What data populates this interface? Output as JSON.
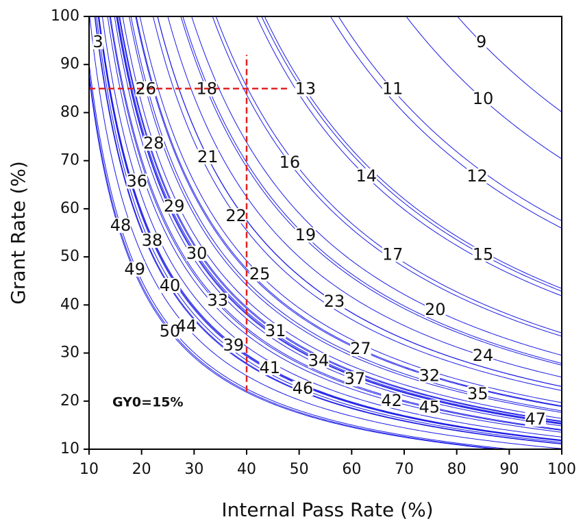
{
  "chart_data": {
    "type": "contour",
    "xlabel": "Internal Pass Rate (%)",
    "ylabel": "Grant Rate (%)",
    "annotation": "GY0=15%",
    "xlim": [
      10,
      100
    ],
    "ylim": [
      10,
      100
    ],
    "xticks": [
      10,
      20,
      30,
      40,
      50,
      60,
      70,
      80,
      90,
      100
    ],
    "yticks": [
      10,
      20,
      30,
      40,
      50,
      60,
      70,
      80,
      90,
      100
    ],
    "color": "#1a1ae6",
    "contours": [
      {
        "label": 3,
        "x": 11.7,
        "y": 94.6
      },
      {
        "label": 9,
        "x": 84.7,
        "y": 94.6
      },
      {
        "label": 26,
        "x": 20.8,
        "y": 84.8
      },
      {
        "label": 18,
        "x": 32.4,
        "y": 84.8
      },
      {
        "label": 13,
        "x": 51.2,
        "y": 84.8
      },
      {
        "label": 11,
        "x": 67.8,
        "y": 84.8
      },
      {
        "label": 10,
        "x": 85.0,
        "y": 82.8
      },
      {
        "label": 28,
        "x": 22.3,
        "y": 73.5
      },
      {
        "label": 21,
        "x": 32.6,
        "y": 70.7
      },
      {
        "label": 16,
        "x": 48.2,
        "y": 69.5
      },
      {
        "label": 14,
        "x": 62.8,
        "y": 66.7
      },
      {
        "label": 12,
        "x": 83.9,
        "y": 66.7
      },
      {
        "label": 36,
        "x": 19.1,
        "y": 65.6
      },
      {
        "label": 29,
        "x": 26.2,
        "y": 60.4
      },
      {
        "label": 22,
        "x": 38.0,
        "y": 58.4
      },
      {
        "label": 48,
        "x": 16.0,
        "y": 56.4
      },
      {
        "label": 19,
        "x": 51.2,
        "y": 54.4
      },
      {
        "label": 38,
        "x": 22.0,
        "y": 53.3
      },
      {
        "label": 30,
        "x": 30.5,
        "y": 50.6
      },
      {
        "label": 17,
        "x": 67.8,
        "y": 50.4
      },
      {
        "label": 15,
        "x": 85.0,
        "y": 50.4
      },
      {
        "label": 49,
        "x": 18.7,
        "y": 47.3
      },
      {
        "label": 25,
        "x": 42.5,
        "y": 46.3
      },
      {
        "label": 40,
        "x": 25.4,
        "y": 43.9
      },
      {
        "label": 33,
        "x": 34.5,
        "y": 40.8
      },
      {
        "label": 23,
        "x": 56.7,
        "y": 40.6
      },
      {
        "label": 20,
        "x": 75.9,
        "y": 38.9
      },
      {
        "label": 44,
        "x": 28.5,
        "y": 35.5
      },
      {
        "label": 50,
        "x": 25.4,
        "y": 34.4
      },
      {
        "label": 31,
        "x": 45.5,
        "y": 34.5
      },
      {
        "label": 39,
        "x": 37.5,
        "y": 31.5
      },
      {
        "label": 27,
        "x": 61.7,
        "y": 30.8
      },
      {
        "label": 24,
        "x": 85.0,
        "y": 29.4
      },
      {
        "label": 34,
        "x": 53.7,
        "y": 28.3
      },
      {
        "label": 41,
        "x": 44.4,
        "y": 26.8
      },
      {
        "label": 37,
        "x": 60.6,
        "y": 24.5
      },
      {
        "label": 32,
        "x": 74.8,
        "y": 25.2
      },
      {
        "label": 46,
        "x": 50.7,
        "y": 22.5
      },
      {
        "label": 42,
        "x": 67.6,
        "y": 20.0
      },
      {
        "label": 35,
        "x": 84.0,
        "y": 21.4
      },
      {
        "label": 45,
        "x": 74.8,
        "y": 18.6
      },
      {
        "label": 47,
        "x": 95.0,
        "y": 16.1
      }
    ],
    "reference_lines": [
      {
        "x": [
          40,
          40
        ],
        "y": [
          22,
          92
        ],
        "color": "#e02020"
      },
      {
        "x": [
          10,
          48
        ],
        "y": [
          85,
          85
        ],
        "color": "#e02020"
      }
    ]
  }
}
